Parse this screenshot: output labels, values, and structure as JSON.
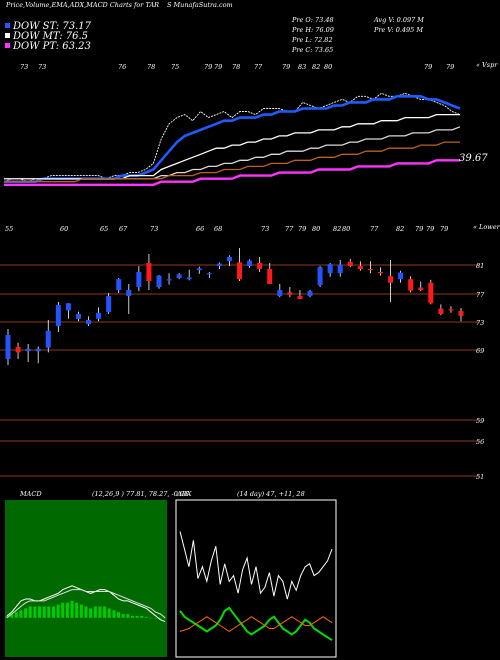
{
  "header": {
    "left_title": "Price,Volume,EMA,ADX,MACD Charts for TAR",
    "right_title": "S MunafaSutra.com"
  },
  "legend": [
    {
      "label": "DOW ST: 73.17",
      "color": "#1f5bff"
    },
    {
      "label": "DOW MT: 76.5",
      "color": "#ffffff"
    },
    {
      "label": "DOW PT: 63.23",
      "color": "#ff33ff"
    }
  ],
  "ohlc": {
    "open": "Pre   O: 73.48",
    "high": "Pre   H: 76.09",
    "low": "Pre   L: 72.82",
    "close": "Pre   C: 73.65"
  },
  "volume": {
    "avg": "Avg V: 0.097 M",
    "pre": "Pre   V: 0.495 M"
  },
  "chart_data": [
    {
      "type": "line",
      "name": "price-ema-panel",
      "x_tick_labels": [
        "73",
        "73",
        "76",
        "78",
        "75",
        "79",
        "79",
        "78",
        "77",
        "79",
        "83",
        "82",
        "80",
        "79",
        "79"
      ],
      "corner_label": "« Vspr",
      "last_value_label": "39.67",
      "series": [
        {
          "role": "price",
          "color": "#ffffff",
          "values": [
            56,
            57,
            57,
            56,
            57,
            57,
            58,
            58,
            58,
            58,
            58,
            58,
            58,
            57,
            58,
            58,
            59,
            59,
            60,
            62,
            70,
            75,
            77,
            78,
            76,
            79,
            77,
            78,
            79,
            77,
            79,
            79,
            78,
            80,
            80,
            80,
            79,
            79,
            82,
            81,
            80,
            81,
            82,
            83,
            82,
            84,
            84,
            83,
            85,
            84,
            84,
            85,
            84,
            83,
            83,
            82,
            81,
            79,
            78
          ]
        },
        {
          "role": "ema-short",
          "color": "#1f5bff",
          "values": [
            56,
            56,
            56,
            56,
            56,
            57,
            57,
            57,
            57,
            57,
            57,
            57,
            57,
            57,
            57,
            58,
            58,
            58,
            59,
            60,
            63,
            66,
            69,
            71,
            72,
            73,
            74,
            75,
            76,
            76,
            77,
            77,
            77,
            78,
            78,
            79,
            79,
            79,
            80,
            80,
            80,
            80,
            81,
            81,
            82,
            82,
            82,
            83,
            83,
            83,
            84,
            84,
            84,
            84,
            83,
            83,
            82,
            81,
            80
          ]
        },
        {
          "role": "ema-mid",
          "color": "#ffffff",
          "values": [
            57,
            57,
            57,
            57,
            57,
            57,
            57,
            57,
            57,
            57,
            57,
            57,
            57,
            57,
            57,
            57,
            58,
            58,
            58,
            58,
            60,
            61,
            62,
            63,
            64,
            65,
            66,
            67,
            67,
            68,
            68,
            69,
            69,
            70,
            70,
            71,
            71,
            72,
            72,
            72,
            73,
            73,
            73,
            74,
            74,
            75,
            75,
            75,
            76,
            76,
            76,
            77,
            77,
            77,
            77,
            78,
            78,
            78,
            78
          ]
        },
        {
          "role": "ema-long",
          "color": "#d9d9d9",
          "values": [
            57,
            57,
            57,
            57,
            57,
            57,
            57,
            57,
            57,
            57,
            57,
            57,
            57,
            57,
            57,
            57,
            57,
            57,
            57,
            57,
            58,
            58,
            59,
            59,
            60,
            60,
            61,
            61,
            62,
            62,
            63,
            63,
            64,
            64,
            65,
            65,
            66,
            66,
            66,
            67,
            67,
            68,
            68,
            68,
            69,
            69,
            70,
            70,
            70,
            71,
            71,
            71,
            72,
            72,
            72,
            73,
            73,
            73,
            74
          ]
        },
        {
          "role": "ema-extra",
          "color": "#b8621b",
          "values": [
            56,
            56,
            56,
            56,
            56,
            56,
            56,
            56,
            56,
            56,
            57,
            57,
            57,
            57,
            57,
            57,
            57,
            57,
            57,
            57,
            57,
            58,
            58,
            58,
            58,
            59,
            59,
            59,
            60,
            60,
            60,
            61,
            61,
            61,
            62,
            62,
            62,
            63,
            63,
            63,
            64,
            64,
            64,
            65,
            65,
            65,
            66,
            66,
            66,
            67,
            67,
            67,
            67,
            68,
            68,
            68,
            69,
            69,
            69
          ]
        },
        {
          "role": "ema-pt",
          "color": "#ff33ff",
          "values": [
            55,
            55,
            55,
            55,
            55,
            55,
            55,
            55,
            55,
            55,
            55,
            55,
            55,
            55,
            55,
            55,
            55,
            55,
            55,
            55,
            56,
            56,
            56,
            56,
            56,
            57,
            57,
            57,
            57,
            57,
            58,
            58,
            58,
            58,
            58,
            59,
            59,
            59,
            59,
            59,
            60,
            60,
            60,
            60,
            60,
            61,
            61,
            61,
            61,
            61,
            62,
            62,
            62,
            62,
            62,
            63,
            63,
            63,
            63
          ]
        }
      ]
    },
    {
      "type": "candlestick",
      "name": "candles-panel",
      "x_tick_labels": [
        "55",
        "60",
        "65",
        "67",
        "73",
        "66",
        "68",
        "73",
        "77",
        "79",
        "80",
        "82",
        "80",
        "77",
        "82",
        "79",
        "79",
        "79"
      ],
      "corner_label": "« Lower",
      "y_tick_labels": [
        "81",
        "77",
        "73",
        "69",
        "59",
        "56",
        "51"
      ],
      "candles": [
        {
          "o": 66.5,
          "h": 71.5,
          "l": 65.5,
          "c": 70.5
        },
        {
          "o": 68.5,
          "h": 69.2,
          "l": 66.5,
          "c": 67.6
        },
        {
          "o": 67.8,
          "h": 69.0,
          "l": 66.0,
          "c": 68.2
        },
        {
          "o": 67.8,
          "h": 68.6,
          "l": 65.8,
          "c": 68.2
        },
        {
          "o": 68.4,
          "h": 73.0,
          "l": 67.6,
          "c": 71.2
        },
        {
          "o": 72.0,
          "h": 76.0,
          "l": 71.0,
          "c": 75.5
        },
        {
          "o": 74.6,
          "h": 75.8,
          "l": 73.2,
          "c": 75.8
        },
        {
          "o": 73.2,
          "h": 74.4,
          "l": 72.8,
          "c": 74.0
        },
        {
          "o": 72.3,
          "h": 73.6,
          "l": 72.0,
          "c": 73.0
        },
        {
          "o": 73.2,
          "h": 75.1,
          "l": 72.8,
          "c": 74.2
        },
        {
          "o": 74.3,
          "h": 77.5,
          "l": 74.0,
          "c": 77.0
        },
        {
          "o": 78.0,
          "h": 80.0,
          "l": 77.5,
          "c": 79.8
        },
        {
          "o": 77.0,
          "h": 79.0,
          "l": 74.0,
          "c": 78.0
        },
        {
          "o": 78.5,
          "h": 82.0,
          "l": 77.8,
          "c": 81.0
        },
        {
          "o": 82.5,
          "h": 84.0,
          "l": 78.0,
          "c": 79.5
        },
        {
          "o": 78.5,
          "h": 80.5,
          "l": 78.2,
          "c": 80.4
        },
        {
          "o": 79.6,
          "h": 80.8,
          "l": 78.9,
          "c": 79.8
        },
        {
          "o": 80.0,
          "h": 80.8,
          "l": 79.8,
          "c": 80.6
        },
        {
          "o": 79.8,
          "h": 81.4,
          "l": 79.6,
          "c": 80.1
        },
        {
          "o": 81.3,
          "h": 81.9,
          "l": 80.7,
          "c": 81.6
        },
        {
          "o": 80.6,
          "h": 81.0,
          "l": 80.0,
          "c": 80.8
        },
        {
          "o": 82.0,
          "h": 82.6,
          "l": 81.5,
          "c": 82.4
        },
        {
          "o": 82.8,
          "h": 83.8,
          "l": 82.0,
          "c": 83.5
        },
        {
          "o": 82.6,
          "h": 85.0,
          "l": 79.5,
          "c": 79.8
        },
        {
          "o": 82.0,
          "h": 83.1,
          "l": 81.7,
          "c": 82.9
        },
        {
          "o": 82.5,
          "h": 83.5,
          "l": 81.0,
          "c": 81.5
        },
        {
          "o": 81.5,
          "h": 82.5,
          "l": 79.0,
          "c": 79.0
        },
        {
          "o": 77.0,
          "h": 79.0,
          "l": 76.8,
          "c": 78.0
        },
        {
          "o": 77.6,
          "h": 78.5,
          "l": 76.8,
          "c": 77.2
        },
        {
          "o": 77.0,
          "h": 78.0,
          "l": 76.5,
          "c": 76.5
        },
        {
          "o": 77.0,
          "h": 78.0,
          "l": 76.8,
          "c": 77.8
        },
        {
          "o": 78.8,
          "h": 82.0,
          "l": 78.5,
          "c": 81.8
        },
        {
          "o": 80.8,
          "h": 82.5,
          "l": 80.2,
          "c": 82.3
        },
        {
          "o": 80.8,
          "h": 83.0,
          "l": 80.2,
          "c": 82.2
        },
        {
          "o": 82.7,
          "h": 83.2,
          "l": 81.8,
          "c": 82.0
        },
        {
          "o": 82.0,
          "h": 82.8,
          "l": 81.2,
          "c": 81.5
        },
        {
          "o": 81.5,
          "h": 82.8,
          "l": 80.8,
          "c": 81.3
        },
        {
          "o": 81.0,
          "h": 81.8,
          "l": 80.4,
          "c": 80.8
        },
        {
          "o": 80.3,
          "h": 83.0,
          "l": 76.0,
          "c": 79.2
        },
        {
          "o": 79.8,
          "h": 81.2,
          "l": 79.2,
          "c": 80.9
        },
        {
          "o": 79.8,
          "h": 80.3,
          "l": 77.6,
          "c": 77.9
        },
        {
          "o": 78.4,
          "h": 79.4,
          "l": 77.8,
          "c": 78.0
        },
        {
          "o": 79.2,
          "h": 79.7,
          "l": 75.6,
          "c": 75.8
        },
        {
          "o": 74.9,
          "h": 75.6,
          "l": 73.8,
          "c": 74.0
        },
        {
          "o": 74.8,
          "h": 75.3,
          "l": 74.2,
          "c": 74.6
        },
        {
          "o": 74.5,
          "h": 75.0,
          "l": 72.8,
          "c": 73.7
        }
      ]
    },
    {
      "type": "line",
      "name": "macd-panel",
      "title": "MACD",
      "params": "(12,26,9 ) 77.81,  78.27,  -0.96",
      "series": [
        {
          "role": "macd",
          "color": "#ffffff",
          "values": [
            0.1,
            0.3,
            0.6,
            0.9,
            1.0,
            1.0,
            0.9,
            0.9,
            1.0,
            1.1,
            1.2,
            1.3,
            1.5,
            1.6,
            1.7,
            1.6,
            1.5,
            1.4,
            1.3,
            1.4,
            1.5,
            1.5,
            1.4,
            1.2,
            1.0,
            0.9,
            0.9,
            0.8,
            0.7,
            0.6,
            0.5,
            0.3,
            0.1,
            -0.1,
            -0.2
          ]
        },
        {
          "role": "signal",
          "color": "#dddddd",
          "values": [
            0.0,
            0.2,
            0.4,
            0.6,
            0.8,
            0.9,
            0.9,
            0.9,
            0.9,
            1.0,
            1.1,
            1.2,
            1.3,
            1.4,
            1.5,
            1.5,
            1.5,
            1.4,
            1.4,
            1.4,
            1.4,
            1.4,
            1.4,
            1.3,
            1.2,
            1.1,
            1.0,
            0.9,
            0.8,
            0.7,
            0.6,
            0.5,
            0.3,
            0.2,
            0.0
          ]
        },
        {
          "role": "histogram",
          "color": "#00cc00",
          "values": [
            0.1,
            0.2,
            0.3,
            0.4,
            0.5,
            0.6,
            0.6,
            0.6,
            0.6,
            0.6,
            0.6,
            0.7,
            0.8,
            0.8,
            0.9,
            0.8,
            0.7,
            0.6,
            0.5,
            0.6,
            0.6,
            0.6,
            0.5,
            0.4,
            0.3,
            0.2,
            0.2,
            0.1,
            0.1,
            0.1,
            0.05,
            0.0,
            0.0,
            0.0,
            0.0
          ]
        }
      ]
    },
    {
      "type": "line",
      "name": "adx-panel",
      "title": "ADX",
      "params": "(14 day) 47,  +11,  28",
      "series": [
        {
          "role": "adx",
          "color": "#ffffff",
          "values": [
            82,
            70,
            58,
            76,
            50,
            58,
            48,
            62,
            72,
            46,
            60,
            48,
            52,
            40,
            56,
            64,
            46,
            58,
            40,
            44,
            54,
            38,
            52,
            48,
            36,
            48,
            42,
            52,
            58,
            60,
            52,
            54,
            58,
            62,
            70
          ]
        },
        {
          "role": "plus-di",
          "color": "#00dd00",
          "values": [
            28,
            24,
            22,
            20,
            18,
            16,
            14,
            16,
            18,
            22,
            28,
            30,
            26,
            22,
            18,
            14,
            12,
            14,
            16,
            18,
            22,
            24,
            20,
            16,
            14,
            12,
            14,
            18,
            22,
            20,
            16,
            14,
            12,
            10,
            8
          ]
        },
        {
          "role": "minus-di",
          "color": "#ff6600",
          "values": [
            14,
            15,
            16,
            18,
            20,
            22,
            24,
            22,
            20,
            18,
            16,
            14,
            16,
            18,
            20,
            22,
            24,
            22,
            20,
            18,
            16,
            16,
            18,
            20,
            22,
            24,
            22,
            20,
            18,
            18,
            20,
            22,
            24,
            22,
            20
          ]
        }
      ]
    }
  ]
}
